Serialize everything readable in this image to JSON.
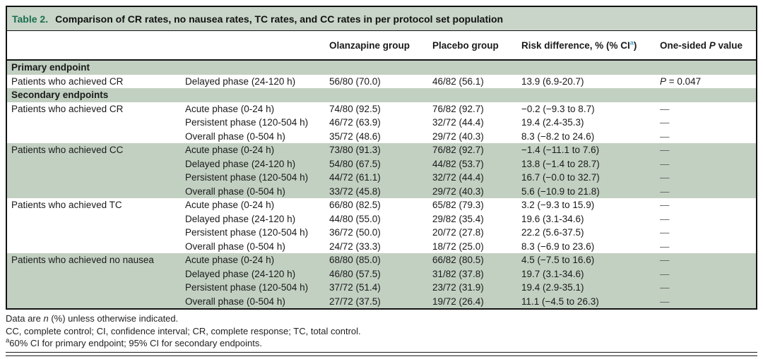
{
  "table": {
    "label": "Table 2.",
    "title": "Comparison of CR rates, no nausea rates, TC rates, and CC rates in per protocol set population",
    "header": {
      "olanzapine": "Olanzapine group",
      "placebo": "Placebo group",
      "risk_prefix": "Risk difference, % (% CI",
      "risk_sup": "a",
      "risk_suffix": ")",
      "p_prefix": "One-sided ",
      "p_italic": "P",
      "p_suffix": " value"
    },
    "rows": [
      {
        "section": "Primary endpoint",
        "shaded": true
      },
      {
        "endpoint": "Patients who achieved CR",
        "phase": "Delayed phase (24-120 h)",
        "olanzapine": "56/80 (70.0)",
        "placebo": "46/82 (56.1)",
        "risk": "13.9 (6.9-20.7)",
        "p_italic": "P",
        "p_text": " = 0.047",
        "shaded": false
      },
      {
        "section": "Secondary endpoints",
        "shaded": true
      },
      {
        "endpoint": "Patients who achieved CR",
        "phase": "Acute phase (0-24 h)",
        "olanzapine": "74/80 (92.5)",
        "placebo": "76/82 (92.7)",
        "risk": "−0.2 (−9.3 to 8.7)",
        "p_text": "—",
        "shaded": false
      },
      {
        "endpoint": "",
        "phase": "Persistent phase (120-504 h)",
        "olanzapine": "46/72 (63.9)",
        "placebo": "32/72 (44.4)",
        "risk": "19.4 (2.4-35.3)",
        "p_text": "—",
        "shaded": false
      },
      {
        "endpoint": "",
        "phase": "Overall phase (0-504 h)",
        "olanzapine": "35/72 (48.6)",
        "placebo": "29/72 (40.3)",
        "risk": "8.3 (−8.2 to 24.6)",
        "p_text": "—",
        "shaded": false
      },
      {
        "endpoint": "Patients who achieved CC",
        "phase": "Acute phase (0-24 h)",
        "olanzapine": "73/80 (91.3)",
        "placebo": "76/82 (92.7)",
        "risk": "−1.4 (−11.1 to 7.6)",
        "p_text": "—",
        "shaded": true
      },
      {
        "endpoint": "",
        "phase": "Delayed phase (24-120 h)",
        "olanzapine": "54/80 (67.5)",
        "placebo": "44/82 (53.7)",
        "risk": "13.8 (−1.4 to 28.7)",
        "p_text": "—",
        "shaded": true
      },
      {
        "endpoint": "",
        "phase": "Persistent phase (120-504 h)",
        "olanzapine": "44/72 (61.1)",
        "placebo": "32/72 (44.4)",
        "risk": "16.7 (−0.0 to 32.7)",
        "p_text": "—",
        "shaded": true
      },
      {
        "endpoint": "",
        "phase": "Overall phase (0-504 h)",
        "olanzapine": "33/72 (45.8)",
        "placebo": "29/72 (40.3)",
        "risk": "5.6 (−10.9 to 21.8)",
        "p_text": "—",
        "shaded": true
      },
      {
        "endpoint": "Patients who achieved TC",
        "phase": "Acute phase (0-24 h)",
        "olanzapine": "66/80 (82.5)",
        "placebo": "65/82 (79.3)",
        "risk": "3.2 (−9.3 to 15.9)",
        "p_text": "—",
        "shaded": false
      },
      {
        "endpoint": "",
        "phase": "Delayed phase (24-120 h)",
        "olanzapine": "44/80 (55.0)",
        "placebo": "29/82 (35.4)",
        "risk": "19.6 (3.1-34.6)",
        "p_text": "—",
        "shaded": false
      },
      {
        "endpoint": "",
        "phase": "Persistent phase (120-504 h)",
        "olanzapine": "36/72 (50.0)",
        "placebo": "20/72 (27.8)",
        "risk": "22.2 (5.6-37.5)",
        "p_text": "—",
        "shaded": false
      },
      {
        "endpoint": "",
        "phase": "Overall phase (0-504 h)",
        "olanzapine": "24/72 (33.3)",
        "placebo": "18/72 (25.0)",
        "risk": "8.3 (−6.9 to 23.6)",
        "p_text": "—",
        "shaded": false
      },
      {
        "endpoint": "Patients who achieved no nausea",
        "phase": "Acute phase (0-24 h)",
        "olanzapine": "68/80 (85.0)",
        "placebo": "66/82 (80.5)",
        "risk": "4.5 (−7.5 to 16.6)",
        "p_text": "—",
        "shaded": true
      },
      {
        "endpoint": "",
        "phase": "Delayed phase (24-120 h)",
        "olanzapine": "46/80 (57.5)",
        "placebo": "31/82 (37.8)",
        "risk": "19.7 (3.1-34.6)",
        "p_text": "—",
        "shaded": true
      },
      {
        "endpoint": "",
        "phase": "Persistent phase (120-504 h)",
        "olanzapine": "37/72 (51.4)",
        "placebo": "23/72 (31.9)",
        "risk": "19.4 (2.9-35.1)",
        "p_text": "—",
        "shaded": true
      },
      {
        "endpoint": "",
        "phase": "Overall phase (0-504 h)",
        "olanzapine": "27/72 (37.5)",
        "placebo": "19/72 (26.4)",
        "risk": "11.1 (−4.5 to 26.3)",
        "p_text": "—",
        "shaded": true
      }
    ]
  },
  "footnotes": {
    "line1_pre": "Data are ",
    "line1_italic": "n",
    "line1_post": " (%) unless otherwise indicated.",
    "line2": "CC, complete control; CI, confidence interval; CR, complete response; TC, total control.",
    "line3_sup": "a",
    "line3_text": "60% CI for primary endpoint; 95% CI for secondary endpoints."
  },
  "colors": {
    "band_green": "#c2d0c2",
    "title_band_green": "#c8d5c8",
    "table_label_green": "#1b6e4f",
    "superscript_blue": "#45a3cb",
    "border_black": "#111111",
    "dash_gray": "#666666"
  }
}
